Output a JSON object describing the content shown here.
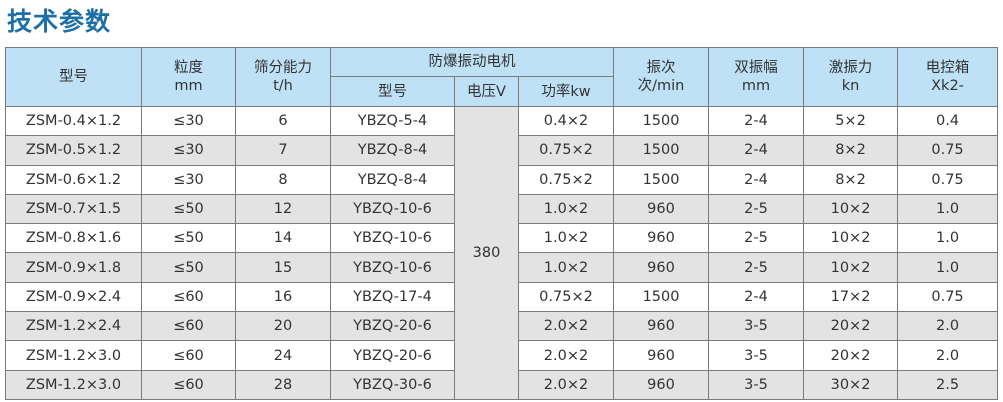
{
  "title": "技术参数",
  "header": {
    "model": "型号",
    "granularity": [
      "粒度",
      "mm"
    ],
    "capacity": [
      "筛分能力",
      "t/h"
    ],
    "motor": "防爆振动电机",
    "motor_model": "型号",
    "voltage": "电压V",
    "power": "功率kw",
    "frequency": [
      "振次",
      "次/min"
    ],
    "amplitude": [
      "双振幅",
      "mm"
    ],
    "force": [
      "激振力",
      "kn"
    ],
    "control_box": [
      "电控箱",
      "Xk2-"
    ]
  },
  "voltage_value": "380",
  "rows": [
    [
      "ZSM-0.4×1.2",
      "≤30",
      "6",
      "YBZQ-5-4",
      "0.4×2",
      "1500",
      "2-4",
      "5×2",
      "0.4"
    ],
    [
      "ZSM-0.5×1.2",
      "≤30",
      "7",
      "YBZQ-8-4",
      "0.75×2",
      "1500",
      "2-4",
      "8×2",
      "0.75"
    ],
    [
      "ZSM-0.6×1.2",
      "≤30",
      "8",
      "YBZQ-8-4",
      "0.75×2",
      "1500",
      "2-4",
      "8×2",
      "0.75"
    ],
    [
      "ZSM-0.7×1.5",
      "≤50",
      "12",
      "YBZQ-10-6",
      "1.0×2",
      "960",
      "2-5",
      "10×2",
      "1.0"
    ],
    [
      "ZSM-0.8×1.6",
      "≤50",
      "14",
      "YBZQ-10-6",
      "1.0×2",
      "960",
      "2-5",
      "10×2",
      "1.0"
    ],
    [
      "ZSM-0.9×1.8",
      "≤50",
      "15",
      "YBZQ-10-6",
      "1.0×2",
      "960",
      "2-5",
      "10×2",
      "1.0"
    ],
    [
      "ZSM-0.9×2.4",
      "≤60",
      "16",
      "YBZQ-17-4",
      "0.75×2",
      "1500",
      "2-4",
      "17×2",
      "0.75"
    ],
    [
      "ZSM-1.2×2.4",
      "≤60",
      "20",
      "YBZQ-20-6",
      "2.0×2",
      "960",
      "3-5",
      "20×2",
      "2.0"
    ],
    [
      "ZSM-1.2×3.0",
      "≤60",
      "24",
      "YBZQ-20-6",
      "2.0×2",
      "960",
      "3-5",
      "20×2",
      "2.0"
    ],
    [
      "ZSM-1.2×3.0",
      "≤60",
      "28",
      "YBZQ-30-6",
      "2.0×2",
      "960",
      "3-5",
      "30×2",
      "2.5"
    ]
  ],
  "colors": {
    "title": "#1d6fa8",
    "header_bg": "#bfe1f6",
    "alt_row_bg": "#e3e3e3"
  }
}
